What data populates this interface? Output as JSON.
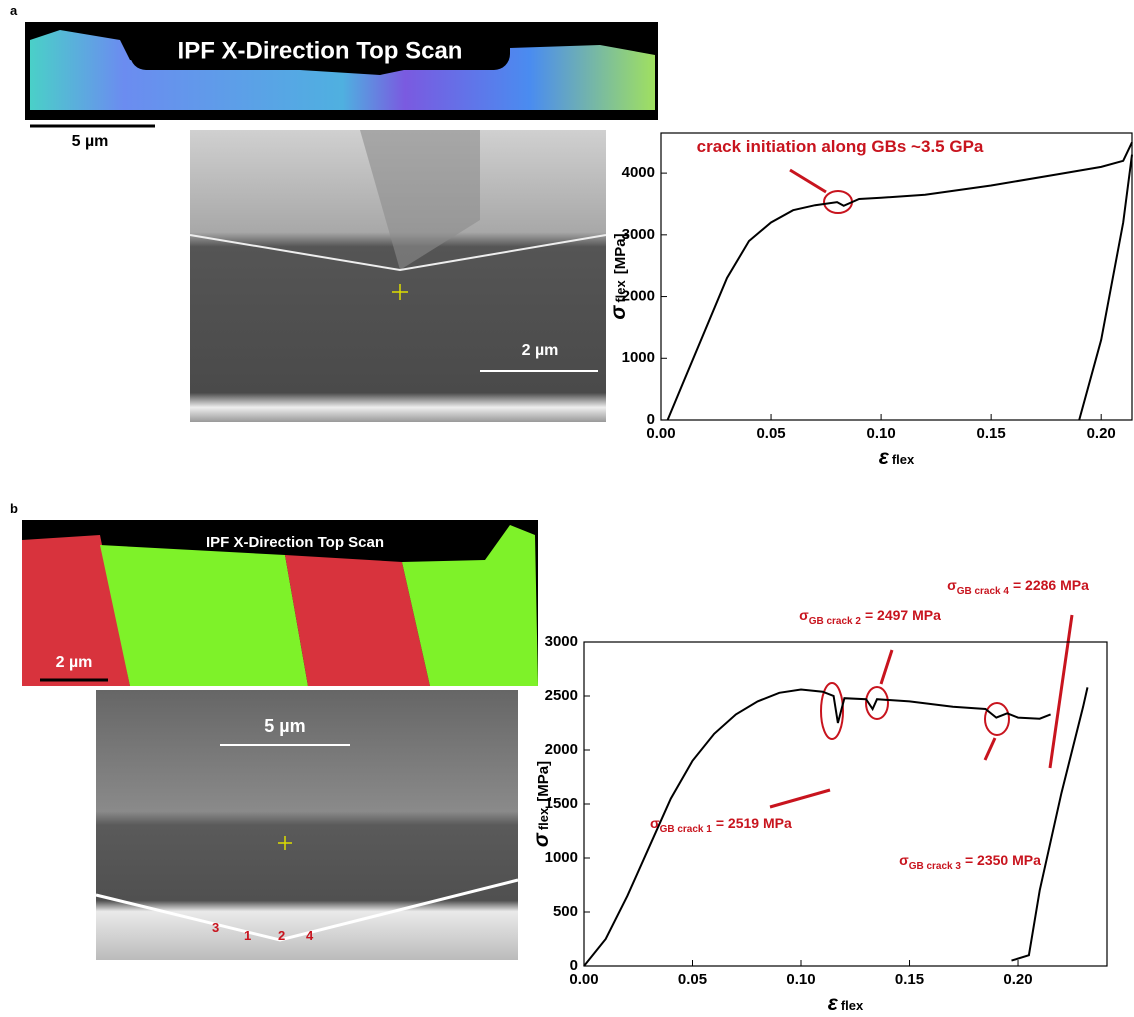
{
  "panels": [
    {
      "label": "a",
      "ipf_title": "IPF X-Direction Top Scan",
      "ipf_scale": "5 µm",
      "sem_scale": "2 µm"
    },
    {
      "label": "b",
      "ipf_title": "IPF X-Direction Top Scan",
      "ipf_scale": "2 µm",
      "sem_scale": "5 µm",
      "crack_marks": [
        "3",
        "1",
        "2",
        "4"
      ]
    }
  ],
  "chart_data": [
    {
      "type": "line",
      "x_label": {
        "symbol": "ε",
        "sub": "flex"
      },
      "y_label": {
        "symbol": "σ",
        "sub": "flex",
        "unit": "[MPa]"
      },
      "xlim": [
        0,
        0.214
      ],
      "ylim": [
        0,
        4650
      ],
      "xticks": [
        {
          "value": 0,
          "label": "0.00"
        },
        {
          "value": 0.05,
          "label": "0.05"
        },
        {
          "value": 0.1,
          "label": "0.10"
        },
        {
          "value": 0.15,
          "label": "0.15"
        },
        {
          "value": 0.2,
          "label": "0.20"
        }
      ],
      "yticks": [
        0,
        1000,
        2000,
        3000,
        4000
      ],
      "series": [
        {
          "color": "#000000",
          "x": [
            0.003,
            0.01,
            0.02,
            0.03,
            0.04,
            0.05,
            0.06,
            0.07,
            0.08,
            0.083,
            0.09,
            0.1,
            0.12,
            0.15,
            0.18,
            0.2,
            0.21,
            0.214
          ],
          "values": [
            0,
            600,
            1450,
            2300,
            2900,
            3200,
            3400,
            3480,
            3530,
            3470,
            3580,
            3600,
            3650,
            3800,
            3980,
            4100,
            4200,
            4500
          ]
        },
        {
          "color": "#000000",
          "x": [
            0.19,
            0.2,
            0.21,
            0.214
          ],
          "values": [
            0,
            1300,
            3200,
            4300
          ]
        }
      ],
      "annotations": [
        {
          "text": "crack initiation along GBs ~3.5 GPa"
        }
      ]
    },
    {
      "type": "line",
      "x_label": {
        "symbol": "ε",
        "sub": "flex"
      },
      "y_label": {
        "symbol": "σ",
        "sub": "flex",
        "unit": "[MPa]"
      },
      "xlim": [
        0,
        0.241
      ],
      "ylim": [
        0,
        3000
      ],
      "xticks": [
        {
          "value": 0,
          "label": "0.00"
        },
        {
          "value": 0.05,
          "label": "0.05"
        },
        {
          "value": 0.1,
          "label": "0.10"
        },
        {
          "value": 0.15,
          "label": "0.15"
        },
        {
          "value": 0.2,
          "label": "0.20"
        }
      ],
      "yticks": [
        0,
        500,
        1000,
        1500,
        2000,
        2500,
        3000
      ],
      "series": [
        {
          "color": "#000000",
          "x": [
            0,
            0.01,
            0.02,
            0.03,
            0.04,
            0.05,
            0.06,
            0.07,
            0.08,
            0.09,
            0.1,
            0.11,
            0.115,
            0.117,
            0.12,
            0.13,
            0.133,
            0.135,
            0.15,
            0.17,
            0.185,
            0.19,
            0.195,
            0.2,
            0.21,
            0.215
          ],
          "values": [
            0,
            250,
            650,
            1100,
            1550,
            1900,
            2150,
            2330,
            2450,
            2530,
            2560,
            2540,
            2500,
            2250,
            2480,
            2470,
            2380,
            2470,
            2450,
            2400,
            2380,
            2300,
            2340,
            2300,
            2290,
            2330
          ]
        },
        {
          "color": "#000000",
          "x": [
            0.197,
            0.205,
            0.21,
            0.22,
            0.23,
            0.232
          ],
          "values": [
            50,
            100,
            700,
            1600,
            2400,
            2580
          ]
        }
      ],
      "annotations": [
        {
          "symbol": "σ",
          "sub": "GB crack 1",
          "text": "= 2519 MPa"
        },
        {
          "symbol": "σ",
          "sub": "GB crack 2",
          "text": "= 2497 MPa"
        },
        {
          "symbol": "σ",
          "sub": "GB crack 3",
          "text": "= 2350 MPa"
        },
        {
          "symbol": "σ",
          "sub": "GB crack 4",
          "text": "= 2286 MPa"
        }
      ]
    }
  ]
}
